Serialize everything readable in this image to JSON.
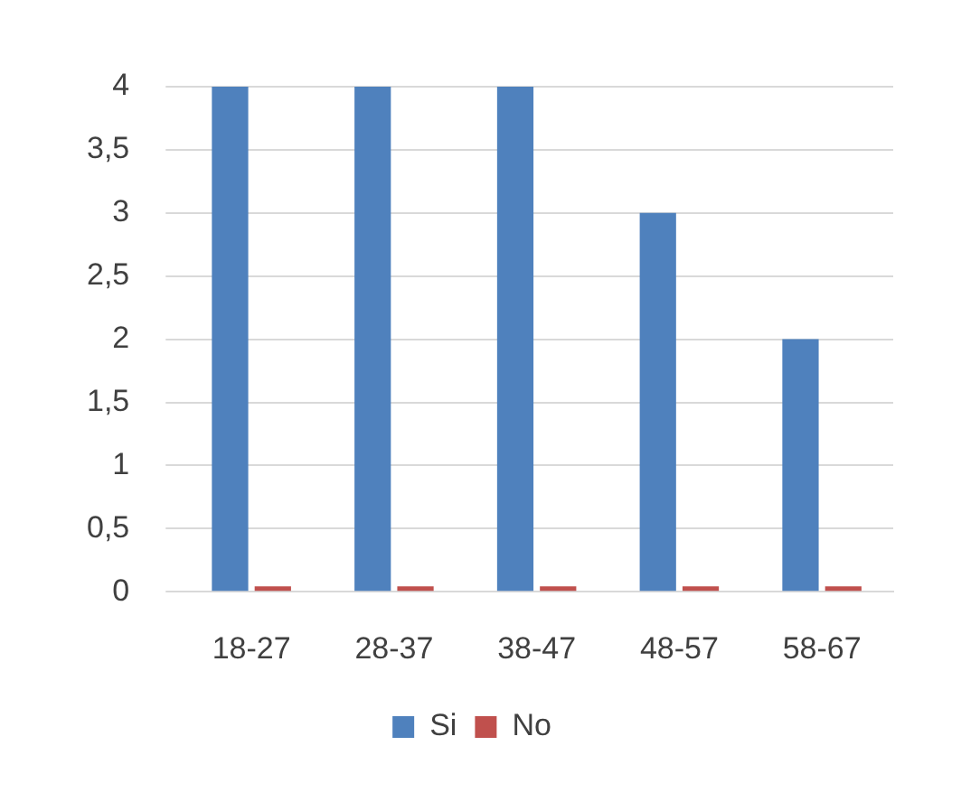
{
  "chart_data": {
    "type": "bar",
    "categories": [
      "18-27",
      "28-37",
      "38-47",
      "48-57",
      "58-67"
    ],
    "series": [
      {
        "name": "Si",
        "color": "#4f81bd",
        "values": [
          4,
          4,
          4,
          3,
          2
        ]
      },
      {
        "name": "No",
        "color": "#c0504d",
        "values": [
          0,
          0,
          0,
          0,
          0
        ]
      }
    ],
    "ylim": [
      0,
      4
    ],
    "yticks": [
      0,
      {
        "value": 0.5,
        "label": "0,5"
      },
      1,
      {
        "value": 1.5,
        "label": "1,5"
      },
      2,
      {
        "value": 2.5,
        "label": "2,5"
      },
      3,
      {
        "value": 3.5,
        "label": "3,5"
      },
      4
    ],
    "grid": "y",
    "legend": "bottom"
  }
}
